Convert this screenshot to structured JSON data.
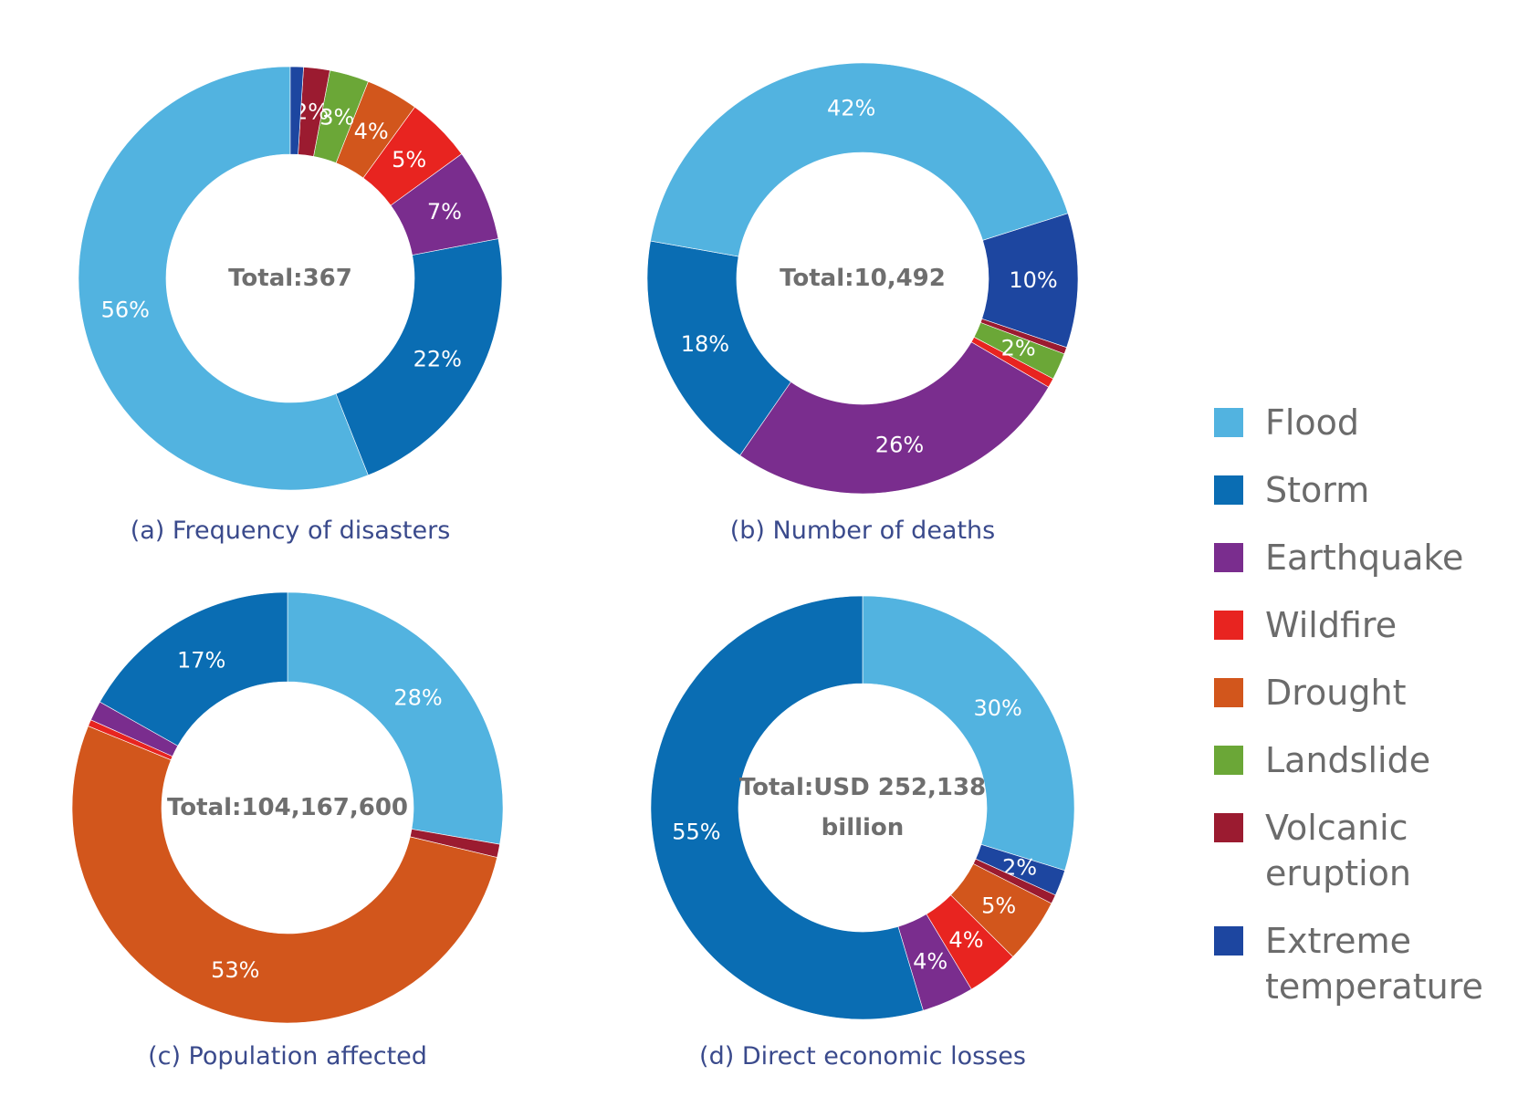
{
  "legend": [
    {
      "key": "flood",
      "label": [
        "Flood"
      ],
      "color": "#52B3E0"
    },
    {
      "key": "storm",
      "label": [
        "Storm"
      ],
      "color": "#0A6DB3"
    },
    {
      "key": "earthquake",
      "label": [
        "Earthquake"
      ],
      "color": "#7A2D8E"
    },
    {
      "key": "wildfire",
      "label": [
        "Wildfire"
      ],
      "color": "#E82420"
    },
    {
      "key": "drought",
      "label": [
        "Drought"
      ],
      "color": "#D2561C"
    },
    {
      "key": "landslide",
      "label": [
        "Landslide"
      ],
      "color": "#6BA737"
    },
    {
      "key": "volcanic",
      "label": [
        "Volcanic",
        "eruption"
      ],
      "color": "#9B1B30"
    },
    {
      "key": "extreme",
      "label": [
        "Extreme",
        "temperature"
      ],
      "color": "#1D46A0"
    }
  ],
  "chart_data": [
    {
      "type": "pie",
      "caption": "(a) Frequency of disasters",
      "total_lines": [
        "Total:367"
      ],
      "start_deg": 90,
      "direction": "ccw",
      "slices": [
        {
          "key": "flood",
          "value": 56,
          "label": "56%"
        },
        {
          "key": "storm",
          "value": 22,
          "label": "22%"
        },
        {
          "key": "earthquake",
          "value": 7,
          "label": "7%"
        },
        {
          "key": "wildfire",
          "value": 5,
          "label": "5%"
        },
        {
          "key": "drought",
          "value": 4,
          "label": "4%"
        },
        {
          "key": "landslide",
          "value": 3,
          "label": "3%"
        },
        {
          "key": "volcanic",
          "value": 2,
          "label": "2%"
        },
        {
          "key": "extreme",
          "value": 1,
          "label": ""
        }
      ]
    },
    {
      "type": "pie",
      "caption": "(b) Number of deaths",
      "total_lines": [
        "Total:10,492"
      ],
      "start_deg": 170,
      "direction": "ccw",
      "slices": [
        {
          "key": "storm",
          "value": 18,
          "label": "18%"
        },
        {
          "key": "earthquake",
          "value": 26,
          "label": "26%"
        },
        {
          "key": "wildfire",
          "value": 0.7,
          "label": ""
        },
        {
          "key": "landslide",
          "value": 2,
          "label": "2%"
        },
        {
          "key": "volcanic",
          "value": 0.5,
          "label": ""
        },
        {
          "key": "extreme",
          "value": 10,
          "label": "10%"
        },
        {
          "key": "flood",
          "value": 42,
          "label": "42%"
        }
      ]
    },
    {
      "type": "pie",
      "caption": "(c) Population affected",
      "total_lines": [
        "Total:104,167,600"
      ],
      "start_deg": 90,
      "direction": "cw",
      "slices": [
        {
          "key": "flood",
          "value": 28,
          "label": "28%"
        },
        {
          "key": "volcanic",
          "value": 1,
          "label": ""
        },
        {
          "key": "drought",
          "value": 53,
          "label": "53%"
        },
        {
          "key": "wildfire",
          "value": 0.5,
          "label": ""
        },
        {
          "key": "earthquake",
          "value": 1.5,
          "label": ""
        },
        {
          "key": "storm",
          "value": 17,
          "label": "17%"
        }
      ]
    },
    {
      "type": "pie",
      "caption": "(d) Direct economic losses",
      "total_lines": [
        "Total:USD 252,138",
        "billion"
      ],
      "start_deg": 90,
      "direction": "cw",
      "slices": [
        {
          "key": "flood",
          "value": 30,
          "label": "30%"
        },
        {
          "key": "extreme",
          "value": 2,
          "label": "2%"
        },
        {
          "key": "volcanic",
          "value": 0.7,
          "label": ""
        },
        {
          "key": "drought",
          "value": 5,
          "label": "5%"
        },
        {
          "key": "wildfire",
          "value": 4,
          "label": "4%"
        },
        {
          "key": "earthquake",
          "value": 4,
          "label": "4%"
        },
        {
          "key": "storm",
          "value": 55,
          "label": "55%"
        }
      ]
    }
  ]
}
